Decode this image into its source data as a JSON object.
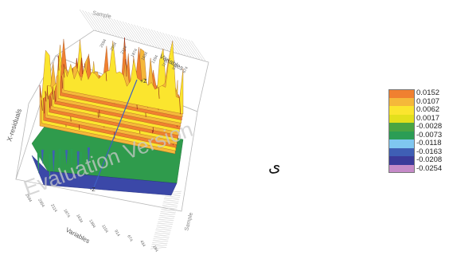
{
  "chart_data": {
    "type": "surface3d",
    "axis_labels": {
      "residual_axis": "X-residuals",
      "variables_axis_back": "Variables",
      "variables_axis_front": "Variables",
      "samples_axis_top": "Sample",
      "samples_axis_right": "Sample",
      "z_axis_positive": "+Z",
      "z_axis_negative": "-Z"
    },
    "variable_ticks": [
      "2594",
      "2354",
      "2114",
      "1874",
      "1634",
      "1394",
      "1154",
      "914",
      "674",
      "434",
      "194"
    ],
    "watermark": "Evaluation Version",
    "legend": {
      "labels": [
        "0.0152",
        "0.0107",
        "0.0062",
        "0.0017",
        "-0.0028",
        "-0.0073",
        "-0.0118",
        "-0.0163",
        "-0.0208",
        "-0.0254"
      ],
      "colors": [
        "#f08030",
        "#f5b83a",
        "#fbe52e",
        "#e3e01c",
        "#4aa542",
        "#2b9d55",
        "#7fc7f0",
        "#3f5fb5",
        "#3b3a9a",
        "#c58ac8"
      ]
    }
  },
  "marker_glyph": "ی"
}
